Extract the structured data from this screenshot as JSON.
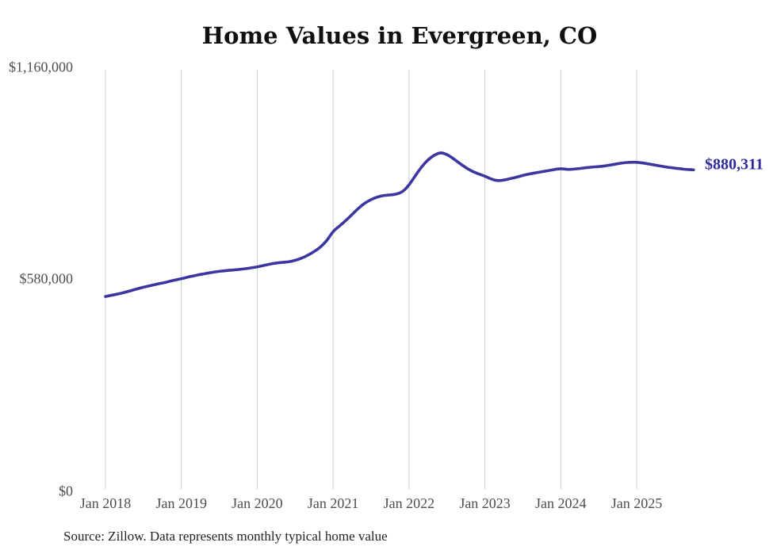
{
  "chart_data": {
    "type": "line",
    "title": "Home Values in Evergreen, CO",
    "source_note": "Source: Zillow. Data represents monthly typical home value",
    "end_label": "$880,311",
    "final_value": 880311,
    "x_tick_labels": [
      "Jan 2018",
      "Jan 2019",
      "Jan 2020",
      "Jan 2021",
      "Jan 2022",
      "Jan 2023",
      "Jan 2024",
      "Jan 2025"
    ],
    "y_tick_labels": [
      "$0",
      "$580,000",
      "$1,160,000"
    ],
    "y_ticks": [
      0,
      580000,
      1160000
    ],
    "ylim": [
      0,
      1160000
    ],
    "x_start": "Jan 2018",
    "x_end": "Oct 2025",
    "x_frequency": "monthly",
    "grid": "vertical-only",
    "legend": "none",
    "colors": {
      "line": "#3c37a0",
      "end_label": "#2d2b9b",
      "gridline": "#cccccc",
      "tick_text": "#4d4d4d",
      "title_text": "#101010",
      "source_text": "#222222",
      "background": "#ffffff"
    },
    "series": [
      {
        "name": "Typical home value",
        "values": [
          533000,
          536500,
          540000,
          544000,
          549000,
          554000,
          558500,
          562500,
          566500,
          570000,
          574000,
          578000,
          582000,
          586000,
          590000,
          593500,
          596500,
          599500,
          602000,
          604000,
          605500,
          607000,
          609000,
          611500,
          614000,
          618000,
          622000,
          625000,
          626500,
          628000,
          632000,
          638000,
          646000,
          656000,
          668000,
          686000,
          712000,
          726000,
          741000,
          758000,
          775000,
          789000,
          799000,
          806000,
          810000,
          811500,
          813000,
          820000,
          838000,
          864000,
          889000,
          908000,
          921000,
          928000,
          923000,
          911000,
          898000,
          886000,
          876000,
          869000,
          863000,
          855000,
          850000,
          852000,
          856000,
          860000,
          865000,
          869000,
          872000,
          875000,
          878000,
          881000,
          884000,
          881000,
          882000,
          884000,
          886000,
          888000,
          889000,
          891000,
          894000,
          897000,
          900000,
          901000,
          901000,
          899000,
          896000,
          893000,
          890000,
          887000,
          885000,
          883000,
          881000,
          880311
        ]
      }
    ]
  }
}
